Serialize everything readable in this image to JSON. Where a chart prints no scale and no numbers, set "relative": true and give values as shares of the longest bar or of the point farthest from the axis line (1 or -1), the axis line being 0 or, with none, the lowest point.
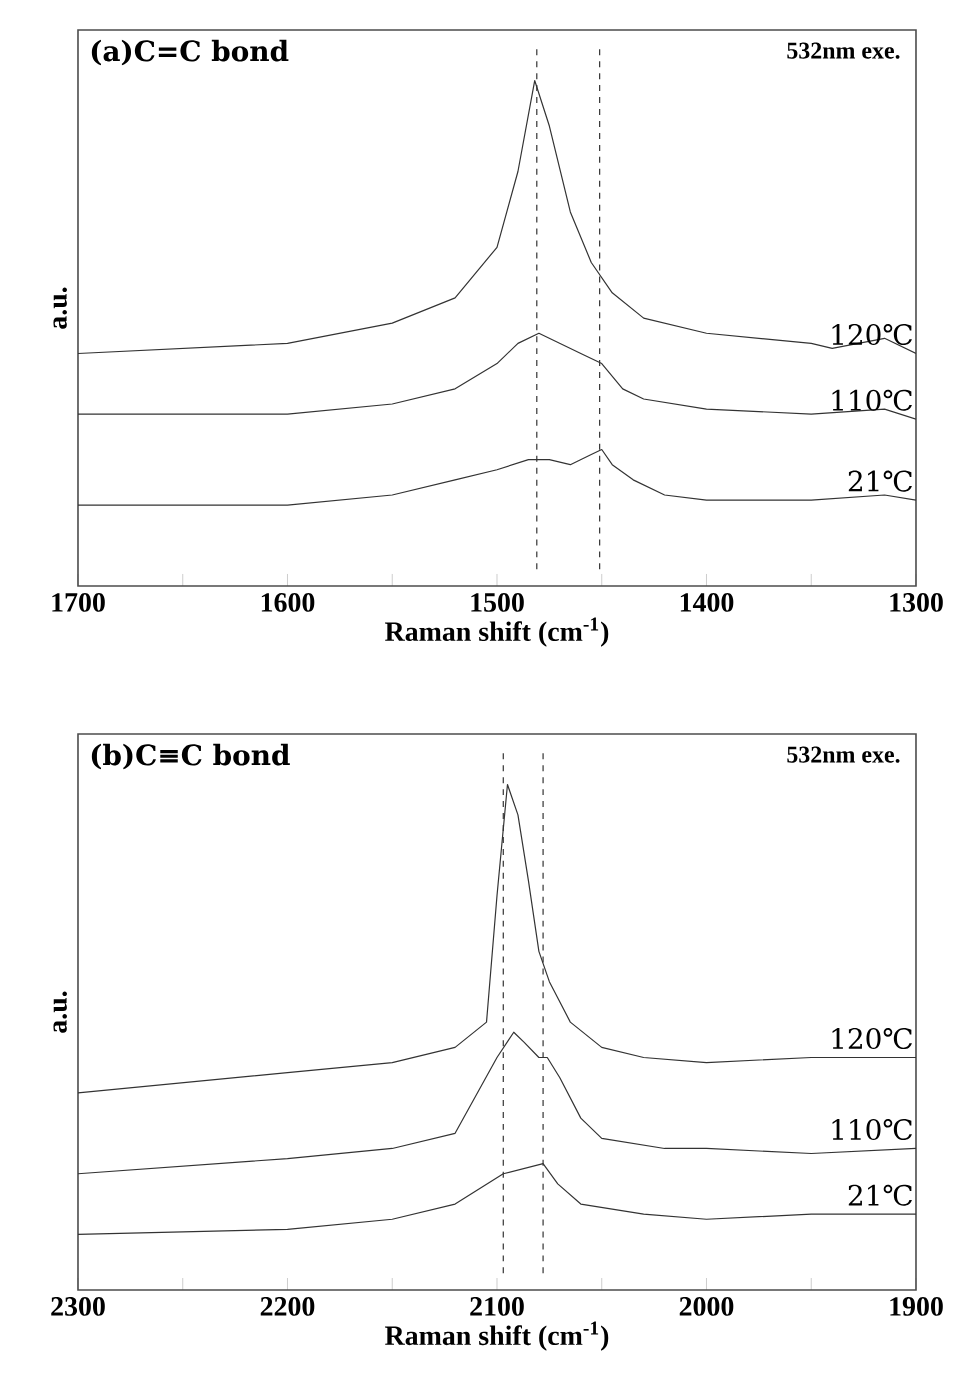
{
  "chart_data": [
    {
      "type": "line",
      "title": "(a)C=C bond",
      "annotations": [
        "532nm exe."
      ],
      "xlabel": "Raman shift (cm$^{-1}$)",
      "ylabel": "a.u.",
      "relative": true,
      "xlim": [
        1700,
        1300
      ],
      "xticks": [
        1700,
        {
          "value": 1650,
          "label": null
        },
        1600,
        {
          "value": 1550,
          "label": null
        },
        1500,
        {
          "value": 1450,
          "label": null
        },
        1400,
        {
          "value": 1350,
          "label": null
        },
        1300
      ],
      "ref_lines": [
        {
          "axis": "x",
          "value": 1481,
          "line_style": "dashed",
          "color": "#333333"
        },
        {
          "axis": "x",
          "value": 1451,
          "line_style": "dashed",
          "color": "#333333"
        }
      ],
      "series": [
        {
          "name": "120℃",
          "color": "#333333",
          "x": [
            1700,
            1600,
            1550,
            1520,
            1500,
            1490,
            1482,
            1475,
            1465,
            1455,
            1445,
            1430,
            1400,
            1350,
            1340,
            1315,
            1300
          ],
          "values": [
            0.46,
            0.48,
            0.52,
            0.57,
            0.67,
            0.82,
            1.0,
            0.91,
            0.74,
            0.64,
            0.58,
            0.53,
            0.5,
            0.48,
            0.47,
            0.49,
            0.46
          ]
        },
        {
          "name": "110℃",
          "color": "#333333",
          "x": [
            1700,
            1600,
            1550,
            1520,
            1500,
            1490,
            1480,
            1470,
            1460,
            1450,
            1440,
            1430,
            1400,
            1350,
            1315,
            1300
          ],
          "values": [
            0.34,
            0.34,
            0.36,
            0.39,
            0.44,
            0.48,
            0.5,
            0.48,
            0.46,
            0.44,
            0.39,
            0.37,
            0.35,
            0.34,
            0.35,
            0.33
          ]
        },
        {
          "name": "21℃",
          "color": "#333333",
          "x": [
            1700,
            1600,
            1550,
            1520,
            1500,
            1485,
            1475,
            1465,
            1455,
            1450,
            1445,
            1435,
            1420,
            1400,
            1350,
            1315,
            1300
          ],
          "values": [
            0.16,
            0.16,
            0.18,
            0.21,
            0.23,
            0.25,
            0.25,
            0.24,
            0.26,
            0.27,
            0.24,
            0.21,
            0.18,
            0.17,
            0.17,
            0.18,
            0.17
          ]
        }
      ]
    },
    {
      "type": "line",
      "title": "(b)C≡C bond",
      "annotations": [
        "532nm exe."
      ],
      "xlabel": "Raman shift (cm$^{-1}$)",
      "ylabel": "a.u.",
      "relative": true,
      "xlim": [
        2300,
        1900
      ],
      "xticks": [
        2300,
        {
          "value": 2250,
          "label": null
        },
        2200,
        {
          "value": 2150,
          "label": null
        },
        2100,
        {
          "value": 2050,
          "label": null
        },
        2000,
        {
          "value": 1950,
          "label": null
        },
        1900
      ],
      "ref_lines": [
        {
          "axis": "x",
          "value": 2097,
          "line_style": "dashed",
          "color": "#333333"
        },
        {
          "axis": "x",
          "value": 2078,
          "line_style": "dashed",
          "color": "#333333"
        }
      ],
      "series": [
        {
          "name": "120℃",
          "color": "#333333",
          "x": [
            2300,
            2250,
            2200,
            2150,
            2120,
            2105,
            2100,
            2095,
            2090,
            2085,
            2080,
            2075,
            2065,
            2050,
            2030,
            2000,
            1950,
            1900
          ],
          "values": [
            0.39,
            0.41,
            0.43,
            0.45,
            0.48,
            0.53,
            0.78,
            1.0,
            0.94,
            0.81,
            0.67,
            0.61,
            0.53,
            0.48,
            0.46,
            0.45,
            0.46,
            0.46
          ]
        },
        {
          "name": "110℃",
          "color": "#333333",
          "x": [
            2300,
            2200,
            2150,
            2120,
            2100,
            2092,
            2087,
            2080,
            2076,
            2070,
            2060,
            2050,
            2020,
            2000,
            1950,
            1900
          ],
          "values": [
            0.23,
            0.26,
            0.28,
            0.31,
            0.46,
            0.51,
            0.49,
            0.46,
            0.46,
            0.42,
            0.34,
            0.3,
            0.28,
            0.28,
            0.27,
            0.28
          ]
        },
        {
          "name": "21℃",
          "color": "#333333",
          "x": [
            2300,
            2200,
            2150,
            2120,
            2097,
            2078,
            2071,
            2060,
            2030,
            2000,
            1950,
            1900
          ],
          "values": [
            0.11,
            0.12,
            0.14,
            0.17,
            0.23,
            0.25,
            0.21,
            0.17,
            0.15,
            0.14,
            0.15,
            0.15
          ]
        }
      ]
    }
  ]
}
